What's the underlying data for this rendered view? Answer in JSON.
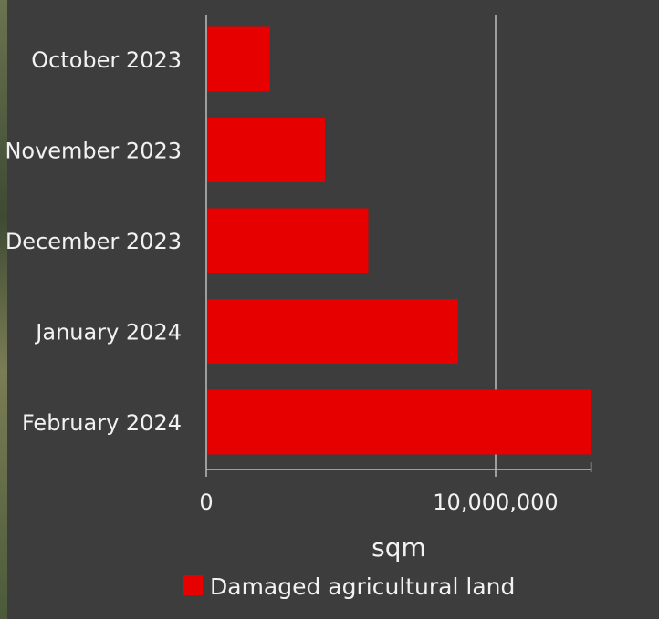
{
  "chart_data": {
    "type": "bar",
    "orientation": "horizontal",
    "categories": [
      "October 2023",
      "November 2023",
      "December 2023",
      "January 2024",
      "February 2024"
    ],
    "series": [
      {
        "name": "Damaged agricultural land",
        "color": "#e60000",
        "values": [
          2200000,
          4100000,
          5600000,
          8700000,
          13300000
        ]
      }
    ],
    "xlabel": "sqm",
    "ylabel": "",
    "xlim": [
      0,
      13300000
    ],
    "x_ticks": [
      {
        "value": 0,
        "label": "0"
      },
      {
        "value": 10000000,
        "label": "10,000,000"
      }
    ],
    "grid": true,
    "legend_position": "bottom",
    "colors": {
      "background": "#3d3d3d",
      "text": "#f2f2f2",
      "bar": "#e60000",
      "grid": "#bdbdbd"
    }
  }
}
